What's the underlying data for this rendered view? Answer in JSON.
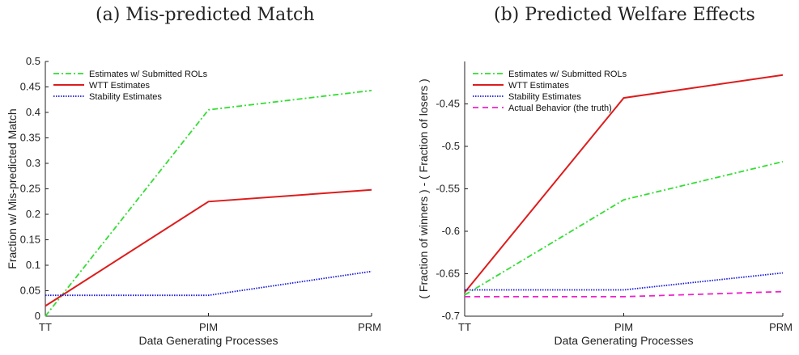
{
  "chart_data": [
    {
      "type": "line",
      "title": "(a) Mis-predicted Match",
      "xlabel": "Data Generating Processes",
      "ylabel": "Fraction w/ Mis-predicted Match",
      "categories": [
        "TT",
        "PIM",
        "PRM"
      ],
      "ylim": [
        0,
        0.5
      ],
      "yticks": [
        0,
        0.05,
        0.1,
        0.15,
        0.2,
        0.25,
        0.3,
        0.35,
        0.4,
        0.45,
        0.5
      ],
      "ytick_labels": [
        "0",
        "0.05",
        "0.1",
        "0.15",
        "0.2",
        "0.25",
        "0.3",
        "0.35",
        "0.4",
        "0.45",
        "0.5"
      ],
      "legend_position": "top-left",
      "series": [
        {
          "name": "Estimates w/ Submitted ROLs",
          "values": [
            0.0,
            0.405,
            0.443
          ],
          "color": "#33dd33",
          "style": "dashdot"
        },
        {
          "name": "WTT Estimates",
          "values": [
            0.02,
            0.225,
            0.248
          ],
          "color": "#dd1c1c",
          "style": "solid"
        },
        {
          "name": "Stability Estimates",
          "values": [
            0.041,
            0.041,
            0.088
          ],
          "color": "#1a1adc",
          "style": "dotted"
        }
      ]
    },
    {
      "type": "line",
      "title": "(b) Predicted Welfare Effects",
      "xlabel": "Data Generating Processes",
      "ylabel": "( Fraction of winners ) - ( Fraction of losers )",
      "categories": [
        "TT",
        "PIM",
        "PRM"
      ],
      "ylim": [
        -0.7,
        -0.4
      ],
      "yticks": [
        -0.7,
        -0.65,
        -0.6,
        -0.55,
        -0.5,
        -0.45
      ],
      "ytick_labels": [
        "-0.7",
        "-0.65",
        "-0.6",
        "-0.55",
        "-0.5",
        "-0.45"
      ],
      "legend_position": "top-left",
      "series": [
        {
          "name": "Estimates w/ Submitted ROLs",
          "values": [
            -0.675,
            -0.563,
            -0.518
          ],
          "color": "#33dd33",
          "style": "dashdot"
        },
        {
          "name": "WTT Estimates",
          "values": [
            -0.672,
            -0.443,
            -0.416
          ],
          "color": "#dd1c1c",
          "style": "solid"
        },
        {
          "name": "Stability Estimates",
          "values": [
            -0.669,
            -0.669,
            -0.649
          ],
          "color": "#1a1adc",
          "style": "dotted"
        },
        {
          "name": "Actual Behavior (the truth)",
          "values": [
            -0.677,
            -0.677,
            -0.671
          ],
          "color": "#ee22cc",
          "style": "dashed"
        }
      ]
    }
  ]
}
